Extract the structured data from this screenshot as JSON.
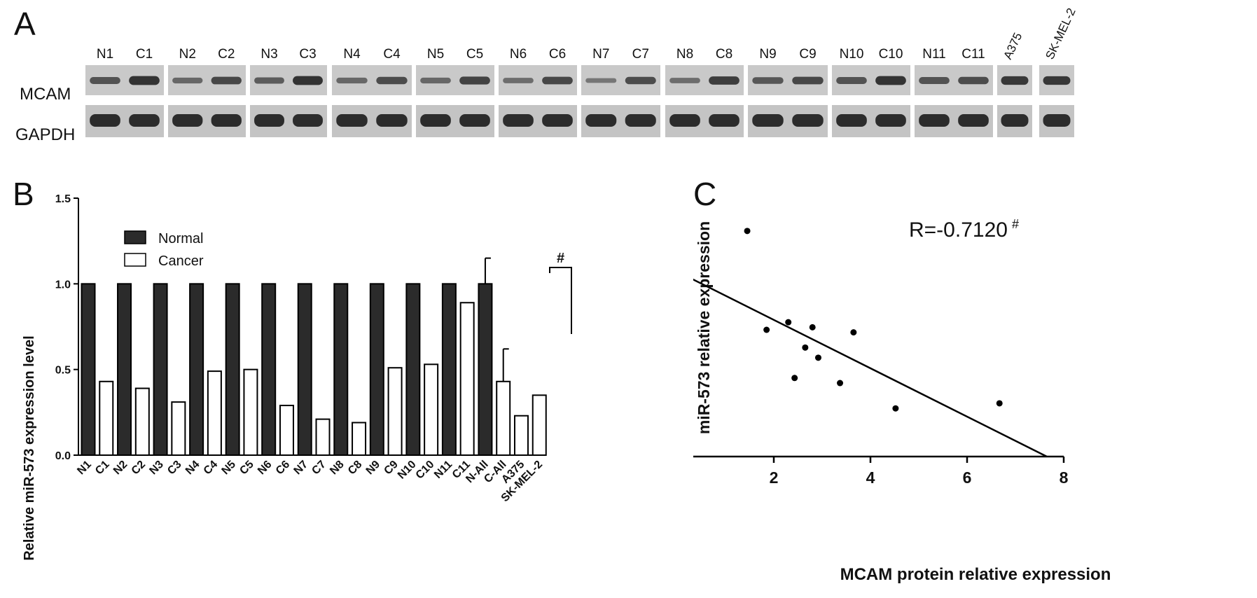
{
  "panel_a": {
    "letter": "A",
    "row_labels": [
      "MCAM",
      "GAPDH"
    ],
    "groups": [
      [
        "N1",
        "C1"
      ],
      [
        "N2",
        "C2"
      ],
      [
        "N3",
        "C3"
      ],
      [
        "N4",
        "C4"
      ],
      [
        "N5",
        "C5"
      ],
      [
        "N6",
        "C6"
      ],
      [
        "N7",
        "C7"
      ],
      [
        "N8",
        "C8"
      ],
      [
        "N9",
        "C9"
      ],
      [
        "N10",
        "C10"
      ],
      [
        "N11",
        "C11"
      ],
      [
        "A375"
      ],
      [
        "SK-MEL-2"
      ]
    ]
  },
  "chart_data": [
    {
      "panel": "B",
      "type": "bar",
      "ylabel": "Relative miR-573 expression level",
      "ylim": [
        0,
        1.5
      ],
      "yticks": [
        "0.0",
        "0.5",
        "1.0",
        "1.5"
      ],
      "categories": [
        "N1",
        "C1",
        "N2",
        "C2",
        "N3",
        "C3",
        "N4",
        "C4",
        "N5",
        "C5",
        "N6",
        "C6",
        "N7",
        "C7",
        "N8",
        "C8",
        "N9",
        "C9",
        "N10",
        "C10",
        "N11",
        "C11",
        "N-All",
        "C-All",
        "A375",
        "SK-MEL-2"
      ],
      "values": [
        1.0,
        0.43,
        1.0,
        0.39,
        1.0,
        0.31,
        1.0,
        0.49,
        1.0,
        0.5,
        1.0,
        0.29,
        1.0,
        0.21,
        1.0,
        0.19,
        1.0,
        0.51,
        1.0,
        0.53,
        1.0,
        0.89,
        1.0,
        0.43,
        0.23,
        0.35
      ],
      "groups": [
        "Normal",
        "Cancer",
        "Normal",
        "Cancer",
        "Normal",
        "Cancer",
        "Normal",
        "Cancer",
        "Normal",
        "Cancer",
        "Normal",
        "Cancer",
        "Normal",
        "Cancer",
        "Normal",
        "Cancer",
        "Normal",
        "Cancer",
        "Normal",
        "Cancer",
        "Normal",
        "Cancer",
        "Normal",
        "Cancer",
        "Cancer",
        "Cancer"
      ],
      "error_bars": {
        "N-All": 0.15,
        "C-All": 0.19
      },
      "legend": [
        "Normal",
        "Cancer"
      ],
      "legend_position": "top-left",
      "annotation": "#",
      "colors": {
        "Normal": "#2b2b2b",
        "Cancer": "#ffffff"
      }
    },
    {
      "panel": "C",
      "type": "scatter",
      "xlabel": "MCAM protein relative expression",
      "ylabel": "miR-573 relative expression",
      "xlim": [
        0,
        8
      ],
      "ylim": [
        0,
        1.0
      ],
      "xticks": [
        "0",
        "2",
        "4",
        "6",
        "8"
      ],
      "yticks": [
        "0.0",
        "0.2",
        "0.4",
        "0.6",
        "0.8",
        "1.0"
      ],
      "points": [
        {
          "x": 1.45,
          "y": 0.89
        },
        {
          "x": 1.85,
          "y": 0.5
        },
        {
          "x": 2.3,
          "y": 0.53
        },
        {
          "x": 2.43,
          "y": 0.31
        },
        {
          "x": 2.65,
          "y": 0.43
        },
        {
          "x": 2.8,
          "y": 0.51
        },
        {
          "x": 2.92,
          "y": 0.39
        },
        {
          "x": 3.37,
          "y": 0.29
        },
        {
          "x": 3.65,
          "y": 0.49
        },
        {
          "x": 4.52,
          "y": 0.19
        },
        {
          "x": 6.67,
          "y": 0.21
        }
      ],
      "fit_line": {
        "intercept": 0.73,
        "x_at_zero": 7.65
      },
      "annotation": "R=-0.7120",
      "annotation_sup": "#"
    }
  ]
}
